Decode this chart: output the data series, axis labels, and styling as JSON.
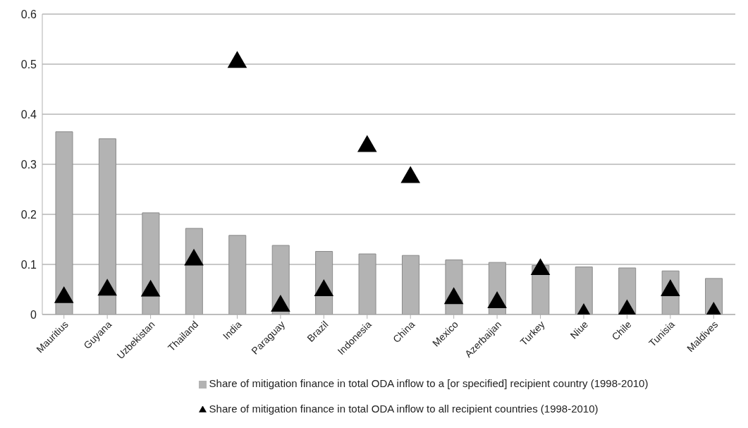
{
  "chart_data": {
    "type": "bar",
    "categories": [
      "Mauritius",
      "Guyana",
      "Uzbekistan",
      "Thailand",
      "India",
      "Paraguay",
      "Brazil",
      "Indonesia",
      "China",
      "Mexico",
      "Azerbaijan",
      "Turkey",
      "Niue",
      "Chile",
      "Tunisia",
      "Maldives"
    ],
    "series": [
      {
        "name": "Share of mitigation finance in total ODA inflow to a [or specified] recipient country (1998-2010)",
        "color": "#b3b3b3",
        "values": [
          0.365,
          0.351,
          0.203,
          0.172,
          0.158,
          0.138,
          0.126,
          0.121,
          0.118,
          0.109,
          0.104,
          0.098,
          0.095,
          0.093,
          0.087,
          0.072
        ]
      },
      {
        "name": "Share of mitigation finance in total ODA inflow to all recipient countries (1998-2010)",
        "type": "scatter",
        "color": "#000000",
        "values": [
          0.034,
          0.049,
          0.047,
          0.109,
          0.504,
          0.017,
          0.048,
          0.336,
          0.274,
          0.032,
          0.024,
          0.09,
          0.0,
          0.008,
          0.048,
          0.003
        ]
      }
    ],
    "marker": "triangle",
    "ylim": [
      0,
      0.6
    ],
    "yticks": [
      0,
      0.1,
      0.2,
      0.3,
      0.4,
      0.5,
      0.6
    ],
    "grid": "y",
    "legend": "bottom"
  }
}
